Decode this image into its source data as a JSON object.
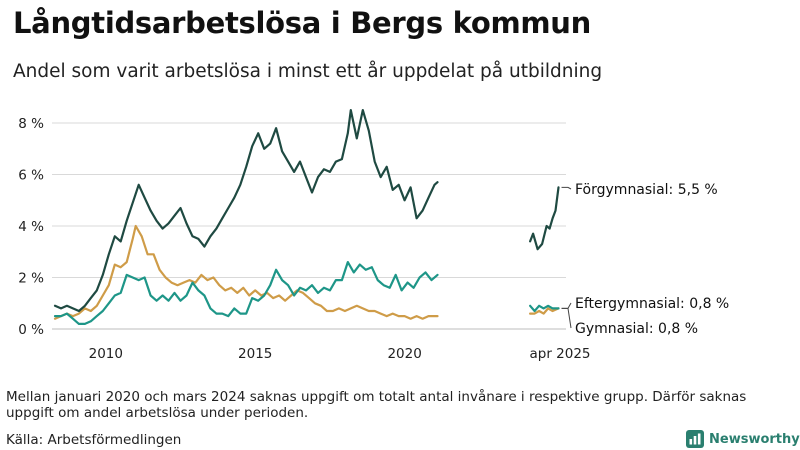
{
  "title": "Långtidsarbetslösa i Bergs kommun",
  "subtitle": "Andel som varit arbetslösa i minst ett år uppdelat på utbildning",
  "note": "Mellan januari 2020 och mars 2024 saknas uppgift om totalt antal invånare i respektive grupp. Därför saknas uppgift om andel arbetslösa under perioden.",
  "source": "Källa: Arbetsförmedlingen",
  "brand": "Newsworthy",
  "chart_data": {
    "type": "line",
    "title": "Långtidsarbetslösa i Bergs kommun",
    "subtitle": "Andel som varit arbetslösa i minst ett år uppdelat på utbildning",
    "xlabel": "",
    "ylabel": "",
    "xlim": [
      2008.2,
      2025.4
    ],
    "ylim": [
      0,
      8.5
    ],
    "y_ticks": [
      0,
      2,
      4,
      6,
      8
    ],
    "y_tick_labels": [
      "0 %",
      "2 %",
      "4 %",
      "6 %",
      "8 %"
    ],
    "x_ticks": [
      2010,
      2015,
      2020,
      2025.2
    ],
    "x_tick_labels": [
      "2010",
      "2015",
      "2020",
      "apr 2025"
    ],
    "grid": "horizontal",
    "series": [
      {
        "name": "Förgymnasial",
        "end_label": "Förgymnasial: 5,5 %",
        "color": "#1f4a42",
        "segments": [
          [
            [
              2008.3,
              0.9
            ],
            [
              2008.5,
              0.8
            ],
            [
              2008.7,
              0.9
            ],
            [
              2008.9,
              0.8
            ],
            [
              2009.1,
              0.7
            ],
            [
              2009.3,
              0.9
            ],
            [
              2009.5,
              1.2
            ],
            [
              2009.7,
              1.5
            ],
            [
              2009.9,
              2.1
            ],
            [
              2010.1,
              2.9
            ],
            [
              2010.3,
              3.6
            ],
            [
              2010.5,
              3.4
            ],
            [
              2010.7,
              4.2
            ],
            [
              2010.9,
              4.9
            ],
            [
              2011.1,
              5.6
            ],
            [
              2011.3,
              5.1
            ],
            [
              2011.5,
              4.6
            ],
            [
              2011.7,
              4.2
            ],
            [
              2011.9,
              3.9
            ],
            [
              2012.1,
              4.1
            ],
            [
              2012.3,
              4.4
            ],
            [
              2012.5,
              4.7
            ],
            [
              2012.7,
              4.1
            ],
            [
              2012.9,
              3.6
            ],
            [
              2013.1,
              3.5
            ],
            [
              2013.3,
              3.2
            ],
            [
              2013.5,
              3.6
            ],
            [
              2013.7,
              3.9
            ],
            [
              2013.9,
              4.3
            ],
            [
              2014.1,
              4.7
            ],
            [
              2014.3,
              5.1
            ],
            [
              2014.5,
              5.6
            ],
            [
              2014.7,
              6.3
            ],
            [
              2014.9,
              7.1
            ],
            [
              2015.1,
              7.6
            ],
            [
              2015.3,
              7.0
            ],
            [
              2015.5,
              7.2
            ],
            [
              2015.7,
              7.8
            ],
            [
              2015.9,
              6.9
            ],
            [
              2016.1,
              6.5
            ],
            [
              2016.3,
              6.1
            ],
            [
              2016.5,
              6.5
            ],
            [
              2016.7,
              5.9
            ],
            [
              2016.9,
              5.3
            ],
            [
              2017.1,
              5.9
            ],
            [
              2017.3,
              6.2
            ],
            [
              2017.5,
              6.1
            ],
            [
              2017.7,
              6.5
            ],
            [
              2017.9,
              6.6
            ],
            [
              2018.1,
              7.6
            ],
            [
              2018.2,
              8.5
            ],
            [
              2018.4,
              7.4
            ],
            [
              2018.6,
              8.5
            ],
            [
              2018.8,
              7.7
            ],
            [
              2019.0,
              6.5
            ],
            [
              2019.2,
              5.9
            ],
            [
              2019.4,
              6.3
            ],
            [
              2019.6,
              5.4
            ],
            [
              2019.8,
              5.6
            ],
            [
              2020.0,
              5.0
            ],
            [
              2020.2,
              5.5
            ],
            [
              2020.4,
              4.3
            ],
            [
              2020.6,
              4.6
            ],
            [
              2020.8,
              5.1
            ],
            [
              2021.0,
              5.6
            ],
            [
              2021.1,
              5.7
            ]
          ],
          [
            [
              2024.2,
              3.4
            ],
            [
              2024.3,
              3.7
            ],
            [
              2024.45,
              3.1
            ],
            [
              2024.6,
              3.3
            ],
            [
              2024.75,
              4.0
            ],
            [
              2024.85,
              3.9
            ],
            [
              2024.95,
              4.3
            ],
            [
              2025.05,
              4.6
            ],
            [
              2025.15,
              5.5
            ]
          ]
        ]
      },
      {
        "name": "Gymnasial",
        "end_label": "Gymnasial: 0,8 %",
        "color": "#1e9688",
        "segments": [
          [
            [
              2008.3,
              0.5
            ],
            [
              2008.5,
              0.5
            ],
            [
              2008.7,
              0.6
            ],
            [
              2008.9,
              0.4
            ],
            [
              2009.1,
              0.2
            ],
            [
              2009.3,
              0.2
            ],
            [
              2009.5,
              0.3
            ],
            [
              2009.7,
              0.5
            ],
            [
              2009.9,
              0.7
            ],
            [
              2010.1,
              1.0
            ],
            [
              2010.3,
              1.3
            ],
            [
              2010.5,
              1.4
            ],
            [
              2010.7,
              2.1
            ],
            [
              2010.9,
              2.0
            ],
            [
              2011.1,
              1.9
            ],
            [
              2011.3,
              2.0
            ],
            [
              2011.5,
              1.3
            ],
            [
              2011.7,
              1.1
            ],
            [
              2011.9,
              1.3
            ],
            [
              2012.1,
              1.1
            ],
            [
              2012.3,
              1.4
            ],
            [
              2012.5,
              1.1
            ],
            [
              2012.7,
              1.3
            ],
            [
              2012.9,
              1.8
            ],
            [
              2013.1,
              1.5
            ],
            [
              2013.3,
              1.3
            ],
            [
              2013.5,
              0.8
            ],
            [
              2013.7,
              0.6
            ],
            [
              2013.9,
              0.6
            ],
            [
              2014.1,
              0.5
            ],
            [
              2014.3,
              0.8
            ],
            [
              2014.5,
              0.6
            ],
            [
              2014.7,
              0.6
            ],
            [
              2014.9,
              1.2
            ],
            [
              2015.1,
              1.1
            ],
            [
              2015.3,
              1.3
            ],
            [
              2015.5,
              1.7
            ],
            [
              2015.7,
              2.3
            ],
            [
              2015.9,
              1.9
            ],
            [
              2016.1,
              1.7
            ],
            [
              2016.3,
              1.3
            ],
            [
              2016.5,
              1.6
            ],
            [
              2016.7,
              1.5
            ],
            [
              2016.9,
              1.7
            ],
            [
              2017.1,
              1.4
            ],
            [
              2017.3,
              1.6
            ],
            [
              2017.5,
              1.5
            ],
            [
              2017.7,
              1.9
            ],
            [
              2017.9,
              1.9
            ],
            [
              2018.1,
              2.6
            ],
            [
              2018.3,
              2.2
            ],
            [
              2018.5,
              2.5
            ],
            [
              2018.7,
              2.3
            ],
            [
              2018.9,
              2.4
            ],
            [
              2019.1,
              1.9
            ],
            [
              2019.3,
              1.7
            ],
            [
              2019.5,
              1.6
            ],
            [
              2019.7,
              2.1
            ],
            [
              2019.9,
              1.5
            ],
            [
              2020.1,
              1.8
            ],
            [
              2020.3,
              1.6
            ],
            [
              2020.5,
              2.0
            ],
            [
              2020.7,
              2.2
            ],
            [
              2020.9,
              1.9
            ],
            [
              2021.1,
              2.1
            ]
          ],
          [
            [
              2024.2,
              0.9
            ],
            [
              2024.35,
              0.7
            ],
            [
              2024.5,
              0.9
            ],
            [
              2024.65,
              0.8
            ],
            [
              2024.8,
              0.9
            ],
            [
              2024.95,
              0.8
            ],
            [
              2025.15,
              0.8
            ]
          ]
        ]
      },
      {
        "name": "Eftergymnasial",
        "end_label": "Eftergymnasial: 0,8 %",
        "color": "#cf9c48",
        "segments": [
          [
            [
              2008.3,
              0.4
            ],
            [
              2008.5,
              0.5
            ],
            [
              2008.7,
              0.6
            ],
            [
              2008.9,
              0.5
            ],
            [
              2009.1,
              0.6
            ],
            [
              2009.3,
              0.8
            ],
            [
              2009.5,
              0.7
            ],
            [
              2009.7,
              0.9
            ],
            [
              2009.9,
              1.3
            ],
            [
              2010.1,
              1.7
            ],
            [
              2010.3,
              2.5
            ],
            [
              2010.5,
              2.4
            ],
            [
              2010.7,
              2.6
            ],
            [
              2010.9,
              3.5
            ],
            [
              2011.0,
              4.0
            ],
            [
              2011.2,
              3.6
            ],
            [
              2011.4,
              2.9
            ],
            [
              2011.6,
              2.9
            ],
            [
              2011.8,
              2.3
            ],
            [
              2012.0,
              2.0
            ],
            [
              2012.2,
              1.8
            ],
            [
              2012.4,
              1.7
            ],
            [
              2012.6,
              1.8
            ],
            [
              2012.8,
              1.9
            ],
            [
              2013.0,
              1.8
            ],
            [
              2013.2,
              2.1
            ],
            [
              2013.4,
              1.9
            ],
            [
              2013.6,
              2.0
            ],
            [
              2013.8,
              1.7
            ],
            [
              2014.0,
              1.5
            ],
            [
              2014.2,
              1.6
            ],
            [
              2014.4,
              1.4
            ],
            [
              2014.6,
              1.6
            ],
            [
              2014.8,
              1.3
            ],
            [
              2015.0,
              1.5
            ],
            [
              2015.2,
              1.3
            ],
            [
              2015.4,
              1.4
            ],
            [
              2015.6,
              1.2
            ],
            [
              2015.8,
              1.3
            ],
            [
              2016.0,
              1.1
            ],
            [
              2016.2,
              1.3
            ],
            [
              2016.4,
              1.5
            ],
            [
              2016.6,
              1.4
            ],
            [
              2016.8,
              1.2
            ],
            [
              2017.0,
              1.0
            ],
            [
              2017.2,
              0.9
            ],
            [
              2017.4,
              0.7
            ],
            [
              2017.6,
              0.7
            ],
            [
              2017.8,
              0.8
            ],
            [
              2018.0,
              0.7
            ],
            [
              2018.2,
              0.8
            ],
            [
              2018.4,
              0.9
            ],
            [
              2018.6,
              0.8
            ],
            [
              2018.8,
              0.7
            ],
            [
              2019.0,
              0.7
            ],
            [
              2019.2,
              0.6
            ],
            [
              2019.4,
              0.5
            ],
            [
              2019.6,
              0.6
            ],
            [
              2019.8,
              0.5
            ],
            [
              2020.0,
              0.5
            ],
            [
              2020.2,
              0.4
            ],
            [
              2020.4,
              0.5
            ],
            [
              2020.6,
              0.4
            ],
            [
              2020.8,
              0.5
            ],
            [
              2021.1,
              0.5
            ]
          ],
          [
            [
              2024.2,
              0.6
            ],
            [
              2024.35,
              0.6
            ],
            [
              2024.5,
              0.7
            ],
            [
              2024.65,
              0.6
            ],
            [
              2024.8,
              0.8
            ],
            [
              2024.95,
              0.7
            ],
            [
              2025.15,
              0.8
            ]
          ]
        ]
      }
    ]
  }
}
